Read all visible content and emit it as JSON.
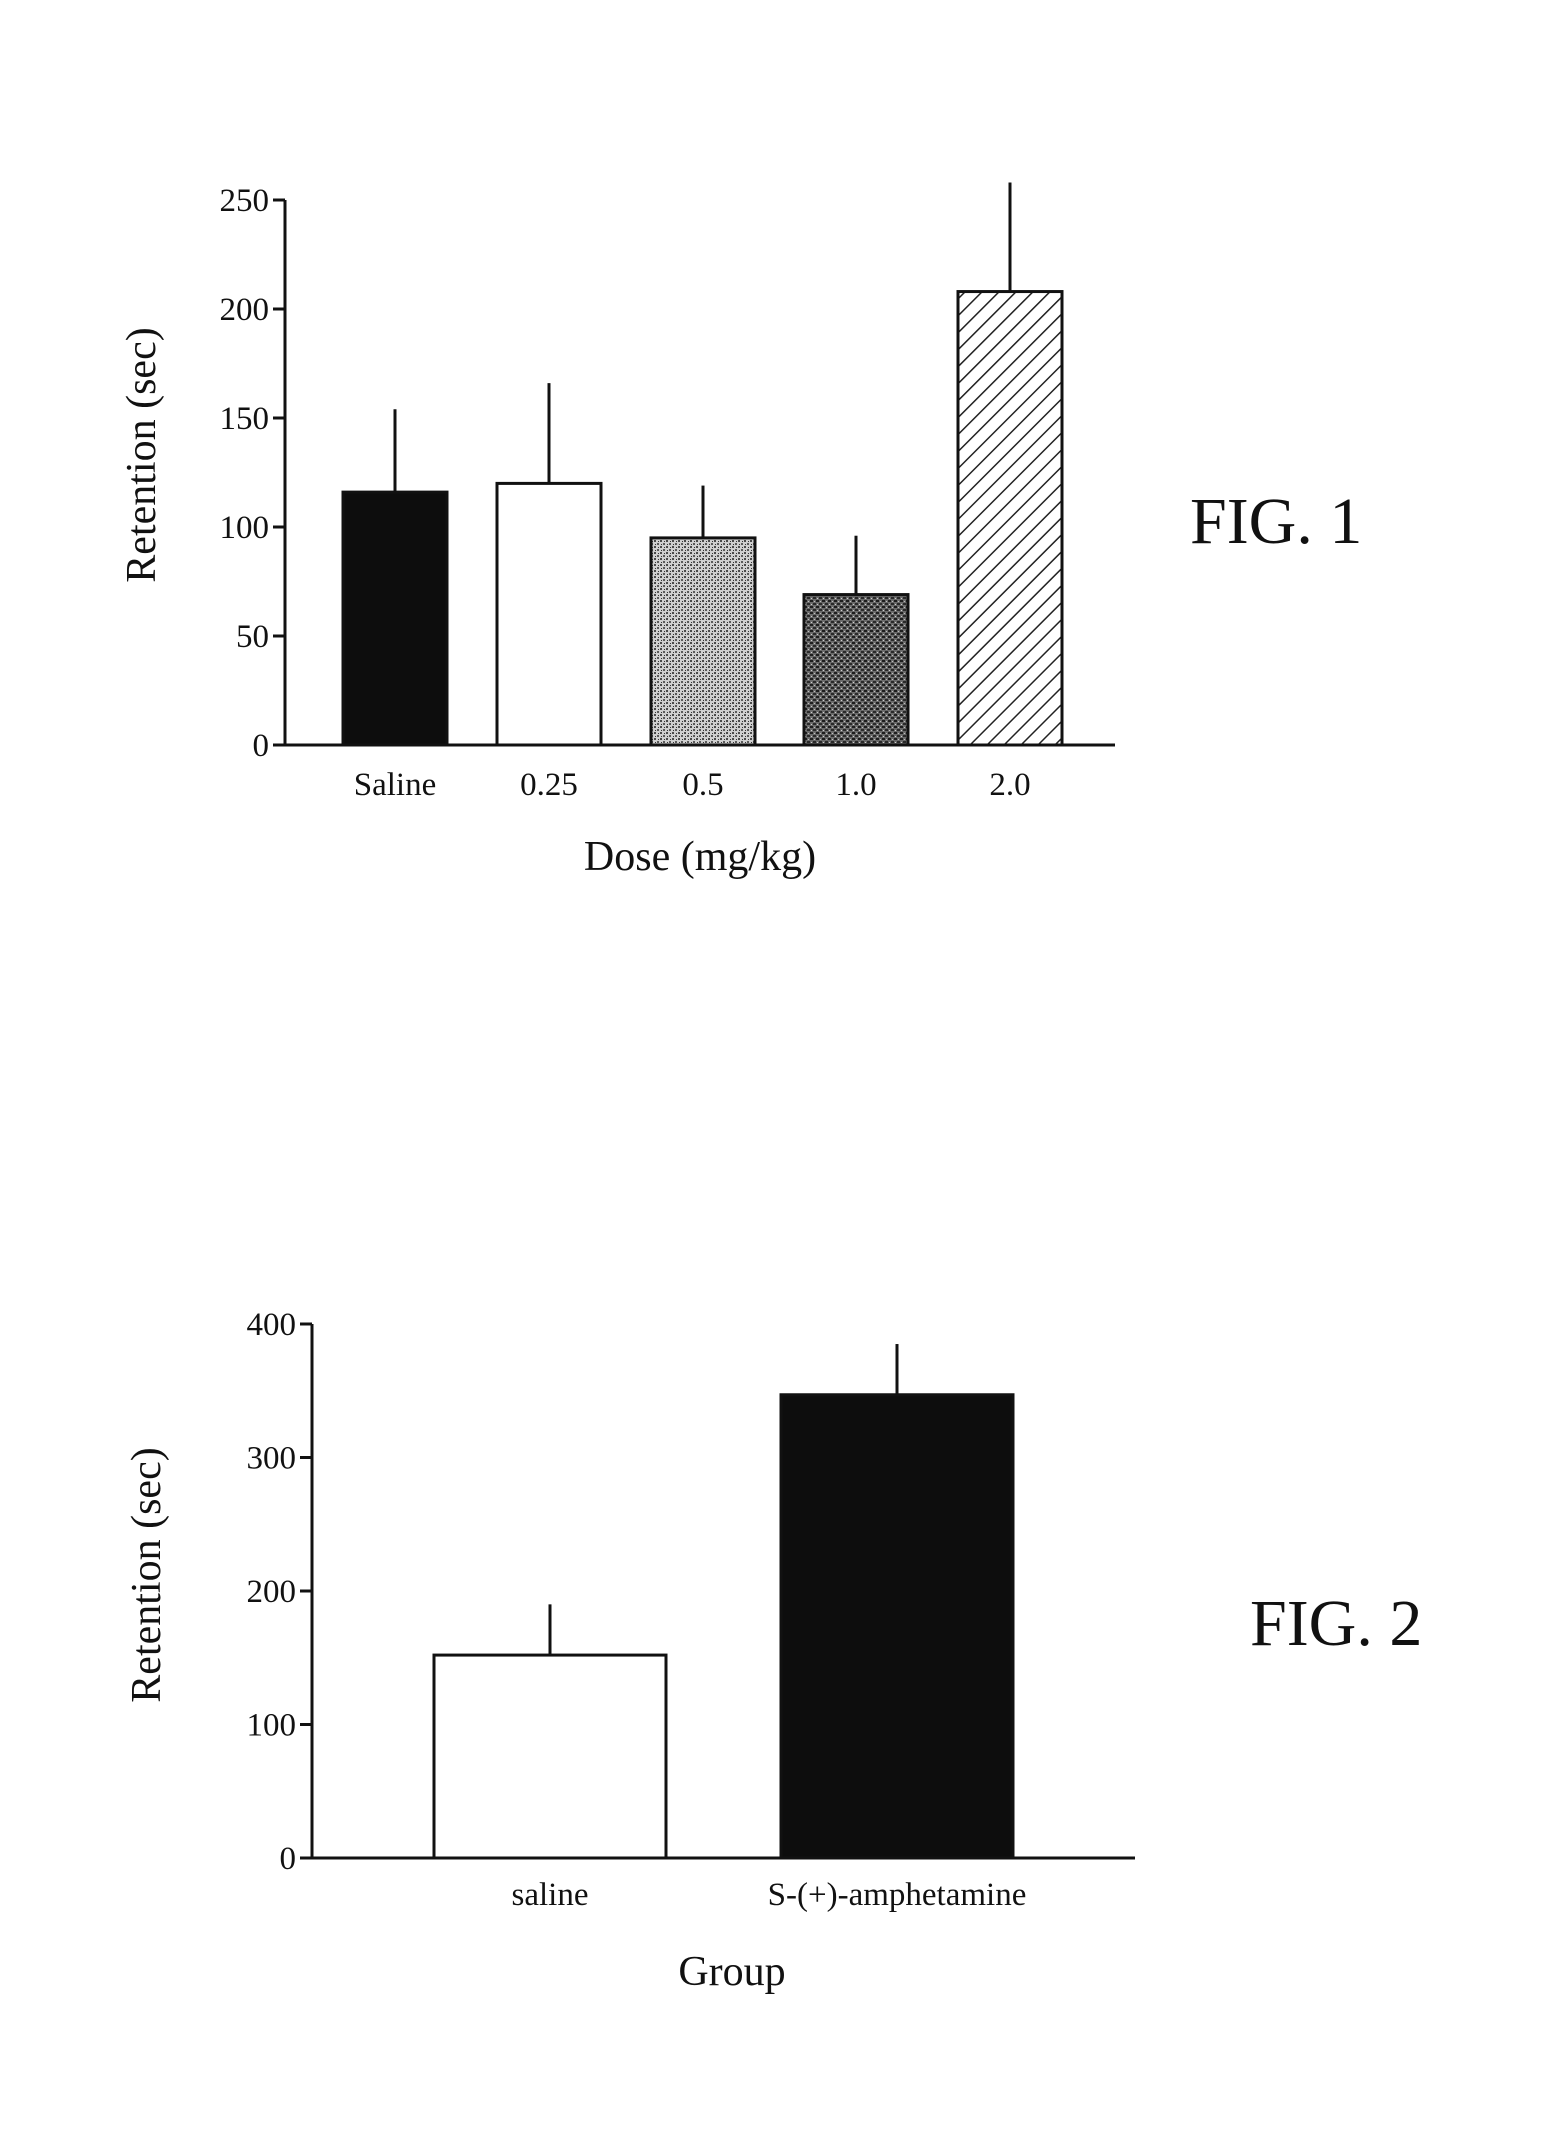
{
  "figures": [
    {
      "label": "FIG. 1"
    },
    {
      "label": "FIG. 2"
    }
  ],
  "colors": {
    "ink": "#111111",
    "bar_black": "#0d0d0d",
    "bar_white": "#ffffff",
    "bar_gray_light": "#9a9a9a",
    "bar_gray_dark": "#5a5a5a"
  },
  "chart_data": [
    {
      "type": "bar",
      "title": "",
      "xlabel": "Dose (mg/kg)",
      "ylabel": "Retention (sec)",
      "ylim": [
        0,
        250
      ],
      "yticks": [
        0,
        50,
        100,
        150,
        200,
        250
      ],
      "ytick_labels": [
        "0",
        "50",
        "100",
        "150",
        "200",
        "250"
      ],
      "categories": [
        "Saline",
        "0.25",
        "0.5",
        "1.0",
        "2.0"
      ],
      "values": [
        116,
        120,
        95,
        69,
        208
      ],
      "error_upper": [
        154,
        166,
        119,
        96,
        258
      ],
      "bar_styles": [
        "solid-black",
        "white",
        "stipple-light",
        "stipple-dark",
        "diagonal-hatch"
      ],
      "grid": false,
      "legend": "none"
    },
    {
      "type": "bar",
      "title": "",
      "xlabel": "Group",
      "ylabel": "Retention (sec)",
      "ylim": [
        0,
        400
      ],
      "yticks": [
        0,
        100,
        200,
        300,
        400
      ],
      "ytick_labels": [
        "0",
        "100",
        "200",
        "300",
        "400"
      ],
      "categories": [
        "saline",
        "S-(+)-amphetamine"
      ],
      "values": [
        152,
        347
      ],
      "error_upper": [
        190,
        385
      ],
      "bar_styles": [
        "white",
        "solid-black"
      ],
      "grid": false,
      "legend": "none"
    }
  ]
}
